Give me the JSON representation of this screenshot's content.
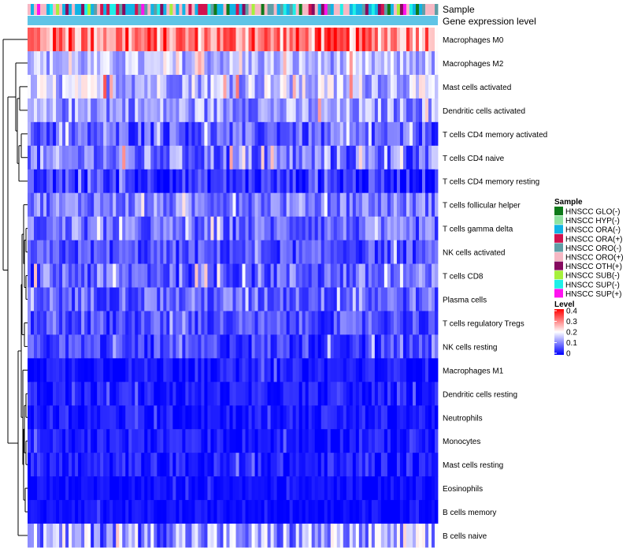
{
  "chart_data": {
    "type": "heatmap",
    "title": "",
    "annotation_tracks": [
      "Sample",
      "Gene expression level"
    ],
    "rows": [
      {
        "label": "Macrophages M0",
        "mean": 0.3,
        "spread": 0.1
      },
      {
        "label": "Macrophages M2",
        "mean": 0.14,
        "spread": 0.06
      },
      {
        "label": "Mast cells activated",
        "mean": 0.15,
        "spread": 0.08
      },
      {
        "label": "Dendritic cells activated",
        "mean": 0.12,
        "spread": 0.07
      },
      {
        "label": "T cells CD4 memory activated",
        "mean": 0.07,
        "spread": 0.06
      },
      {
        "label": "T cells CD4 naive",
        "mean": 0.09,
        "spread": 0.08
      },
      {
        "label": "T cells CD4 memory resting",
        "mean": 0.04,
        "spread": 0.05
      },
      {
        "label": "T cells follicular helper",
        "mean": 0.1,
        "spread": 0.06
      },
      {
        "label": "T cells gamma delta",
        "mean": 0.08,
        "spread": 0.06
      },
      {
        "label": "NK cells activated",
        "mean": 0.06,
        "spread": 0.05
      },
      {
        "label": "T cells CD8",
        "mean": 0.08,
        "spread": 0.07
      },
      {
        "label": "Plasma cells",
        "mean": 0.08,
        "spread": 0.06
      },
      {
        "label": "T cells regulatory  Tregs",
        "mean": 0.06,
        "spread": 0.05
      },
      {
        "label": "NK cells resting",
        "mean": 0.05,
        "spread": 0.05
      },
      {
        "label": "Macrophages M1",
        "mean": 0.02,
        "spread": 0.03
      },
      {
        "label": "Dendritic cells resting",
        "mean": 0.02,
        "spread": 0.03
      },
      {
        "label": "Neutrophils",
        "mean": 0.02,
        "spread": 0.03
      },
      {
        "label": "Monocytes",
        "mean": 0.02,
        "spread": 0.03
      },
      {
        "label": "Mast cells resting",
        "mean": 0.02,
        "spread": 0.04
      },
      {
        "label": "Eosinophils",
        "mean": 0.01,
        "spread": 0.02
      },
      {
        "label": "B cells memory",
        "mean": 0.01,
        "spread": 0.02
      },
      {
        "label": "B cells naive",
        "mean": 0.12,
        "spread": 0.1
      }
    ],
    "n_samples": 130,
    "sample_legend": {
      "title": "Sample",
      "entries": [
        {
          "label": "HNSCC GLO(-)",
          "color": "#0f7a1a"
        },
        {
          "label": "HNSCC HYP(-)",
          "color": "#8fe3a0"
        },
        {
          "label": "HNSCC ORA(-)",
          "color": "#10b4e6"
        },
        {
          "label": "HNSCC ORA(+)",
          "color": "#d1134f"
        },
        {
          "label": "HNSCC ORO(-)",
          "color": "#5f9ea6"
        },
        {
          "label": "HNSCC ORO(+)",
          "color": "#f6b8c4"
        },
        {
          "label": "HNSCC OTH(+)",
          "color": "#860a5f"
        },
        {
          "label": "HNSCC SUB(-)",
          "color": "#a6f03c"
        },
        {
          "label": "HNSCC SUP(-)",
          "color": "#1ef0e8"
        },
        {
          "label": "HNSCC SUP(+)",
          "color": "#ff12f0"
        }
      ]
    },
    "level_legend": {
      "title": "Level",
      "ticks": [
        "0.4",
        "0.3",
        "0.2",
        "0.1",
        "0"
      ],
      "range": [
        0,
        0.4
      ],
      "low_color": "#0000ff",
      "mid_color": "#ffffff",
      "high_color": "#ff0000"
    },
    "expression_track_color": "#5fc4e6"
  }
}
